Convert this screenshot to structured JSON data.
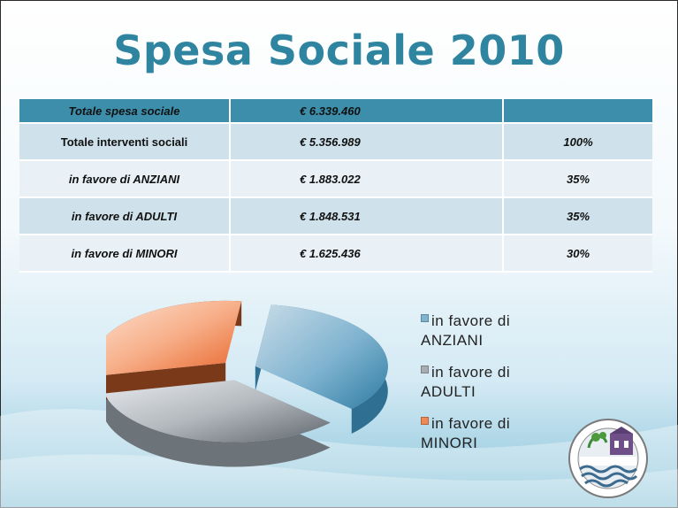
{
  "title": "Spesa Sociale 2010",
  "table": {
    "header": {
      "label": "Totale spesa sociale",
      "amount": "€   6.339.460",
      "pct": ""
    },
    "rows": [
      {
        "label": "Totale interventi sociali",
        "amount": "€   5.356.989",
        "pct": "100%"
      },
      {
        "label": "in favore di ANZIANI",
        "amount": "€   1.883.022",
        "pct": "35%"
      },
      {
        "label": "in favore di ADULTI",
        "amount": "€   1.848.531",
        "pct": "35%"
      },
      {
        "label": "in favore di MINORI",
        "amount": "€   1.625.436",
        "pct": "30%"
      }
    ]
  },
  "chart_data": {
    "type": "pie",
    "categories": [
      "in favore di ANZIANI",
      "in favore di ADULTI",
      "in favore di MINORI"
    ],
    "values": [
      1883022,
      1848531,
      1625436
    ],
    "percent": [
      35,
      35,
      30
    ],
    "legend_position": "right",
    "colors": [
      "#5a9fc0",
      "#9ea6ae",
      "#f08a55"
    ]
  },
  "legend": [
    {
      "line1": "in favore di",
      "line2": "ANZIANI",
      "color": "#7fb3d0"
    },
    {
      "line1": "in favore di",
      "line2": "ADULTI",
      "color": "#a7adb3"
    },
    {
      "line1": "in favore di",
      "line2": "MINORI",
      "color": "#f08a55"
    }
  ],
  "logo": {
    "text_top": "ROVALIANA",
    "text_bottom": "KÖNIGSBERG",
    "inner_text": "COMUNITÀ DELLA VALLE"
  }
}
